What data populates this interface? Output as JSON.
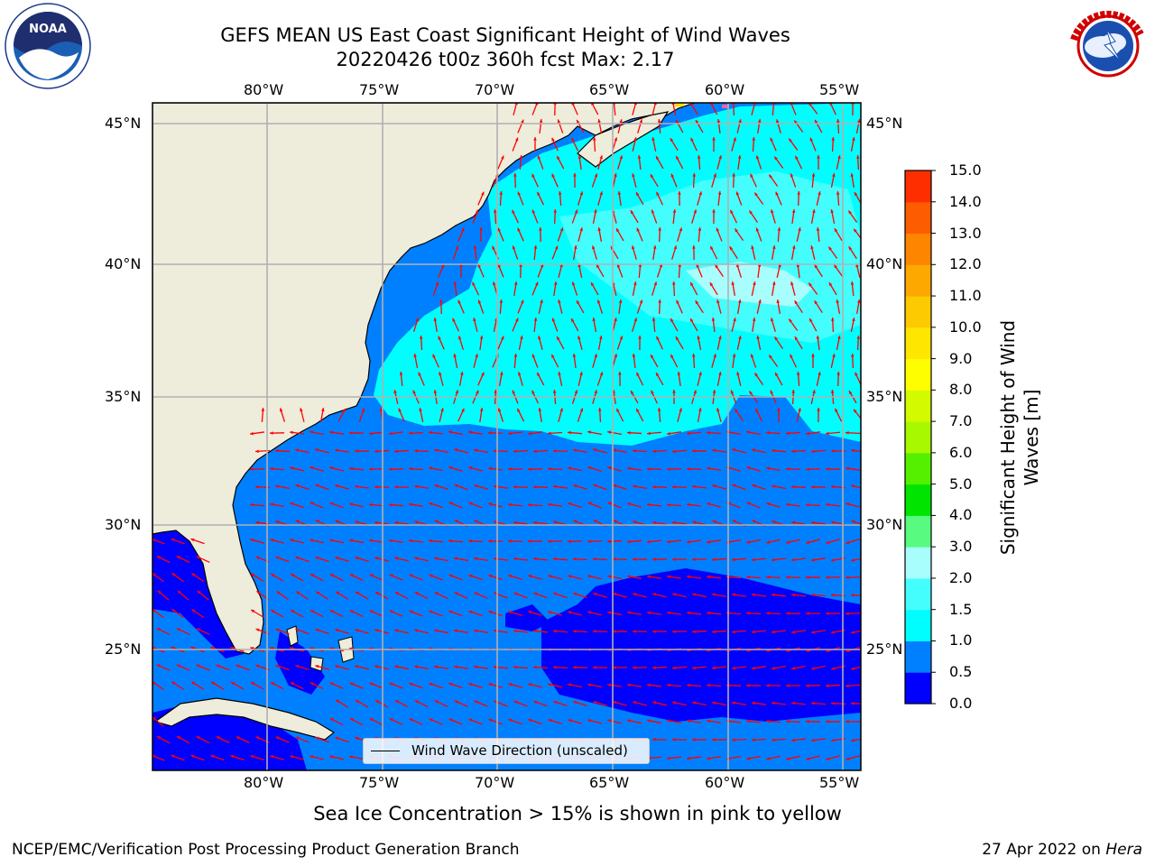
{
  "title": {
    "line1": "GEFS MEAN US East Coast Significant Height of Wind Waves",
    "line2": "20220426 t00z 360h fcst   Max: 2.17"
  },
  "map": {
    "lon_labels": [
      "80°W",
      "75°W",
      "70°W",
      "65°W",
      "60°W",
      "55°W"
    ],
    "lat_labels": [
      "45°N",
      "40°N",
      "35°N",
      "30°N",
      "25°N"
    ],
    "colors": {
      "land": "#eeecdb",
      "wave_0_0_5": "#0000fe",
      "wave_0_5_1_0": "#0080fe",
      "wave_1_0_1_5": "#00fefe",
      "wave_1_5_2_0": "#44fefe",
      "wave_2_0_3_0": "#a8fdfd",
      "arrows": "#ff0000",
      "grid": "#b0b0b0"
    },
    "legend_label": "Wind Wave Direction (unscaled)"
  },
  "colorbar": {
    "title": "Significant Height of Wind Waves [m]",
    "ticks": [
      "0.0",
      "0.5",
      "1.0",
      "1.5",
      "2.0",
      "3.0",
      "4.0",
      "5.0",
      "6.0",
      "7.0",
      "8.0",
      "9.0",
      "10.0",
      "11.0",
      "12.0",
      "13.0",
      "14.0",
      "15.0"
    ],
    "colors": [
      "#0000fe",
      "#0080fe",
      "#00fefe",
      "#44fefe",
      "#a8fdfd",
      "#58fb80",
      "#00e400",
      "#55f000",
      "#a8f800",
      "#d4fa00",
      "#fefe00",
      "#fee600",
      "#fdc900",
      "#fda800",
      "#fd8500",
      "#fd5c00",
      "#fe2e00",
      "#fe0000"
    ]
  },
  "notes": {
    "ice": "Sea Ice Concentration > 15% is shown in pink to yellow"
  },
  "footer": {
    "left": "NCEP/EMC/Verification Post Processing Product Generation Branch",
    "date": "27 Apr 2022 on",
    "host": "Hera"
  },
  "logos": {
    "noaa": "noaa-logo",
    "noaa_text": "NOAA",
    "nws": "nws-logo",
    "nws_text": "NATIONAL WEATHER SERVICE"
  }
}
